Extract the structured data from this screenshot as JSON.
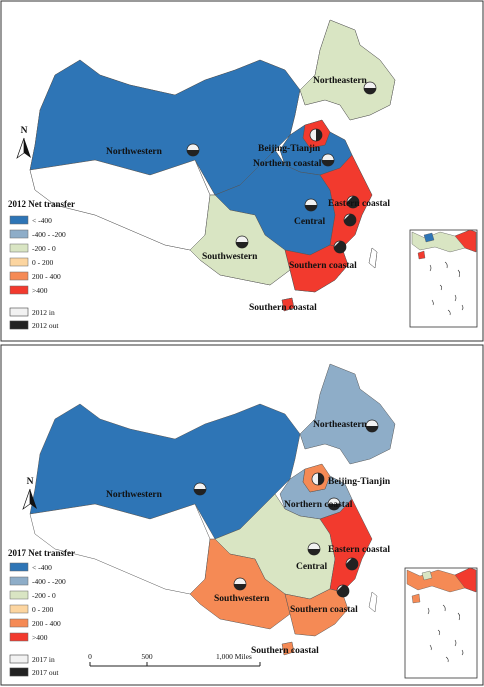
{
  "colors": {
    "lt_neg400": "#2e75b6",
    "neg400_neg200": "#8eadc8",
    "neg200_0": "#d9e5c3",
    "zero_200": "#fcd5a0",
    "p200_400": "#f58a55",
    "gt400": "#f23a2e",
    "in": "#f2f2f2",
    "out": "#222222"
  },
  "map_2012": {
    "legend_title": "2012 Net transfer",
    "legend_items": [
      "< -400",
      "-400 - -200",
      "-200 - 0",
      "0 - 200",
      "200 - 400",
      ">400"
    ],
    "in_label": "2012 in",
    "out_label": "2012 out",
    "north_label": "N",
    "regions": {
      "northeastern": {
        "label": "Northeastern",
        "class": "neg200_0"
      },
      "northwestern": {
        "label": "Northwestern",
        "class": "lt_neg400"
      },
      "beijing_tianjin": {
        "label": "Beijing-Tianjin",
        "class": "gt400"
      },
      "northern_coastal": {
        "label": "Northern coastal",
        "class": "lt_neg400"
      },
      "eastern_coastal": {
        "label": "Eastern coastal",
        "class": "gt400"
      },
      "central": {
        "label": "Central",
        "class": "lt_neg400"
      },
      "southwestern": {
        "label": "Southwestern",
        "class": "neg200_0"
      },
      "southern_coastal": {
        "label": "Southern coastal",
        "class": "gt400"
      },
      "southern_coastal_2": {
        "label": "Southern coastal"
      }
    }
  },
  "map_2017": {
    "legend_title": "2017 Net  transfer",
    "legend_items": [
      "< -400",
      "-400 - -200",
      "-200 - 0",
      "0 - 200",
      "200 - 400",
      ">400"
    ],
    "in_label": "2017  in",
    "out_label": "2017 out",
    "north_label": "N",
    "scale": {
      "zero": "0",
      "mid": "500",
      "max": "1,000 Miles"
    },
    "regions": {
      "northeastern": {
        "label": "Northeastern",
        "class": "neg400_neg200"
      },
      "northwestern": {
        "label": "Northwestern",
        "class": "lt_neg400"
      },
      "beijing_tianjin": {
        "label": "Beijing-Tianjin",
        "class": "p200_400"
      },
      "northern_coastal": {
        "label": "Northern coastal",
        "class": "neg400_neg200"
      },
      "eastern_coastal": {
        "label": "Eastern coastal",
        "class": "gt400"
      },
      "central": {
        "label": "Central",
        "class": "neg200_0"
      },
      "southwestern": {
        "label": "Southwestern",
        "class": "p200_400"
      },
      "southern_coastal": {
        "label": "Southern coastal",
        "class": "p200_400"
      },
      "southern_coastal_2": {
        "label": "Southern coastal"
      }
    }
  }
}
